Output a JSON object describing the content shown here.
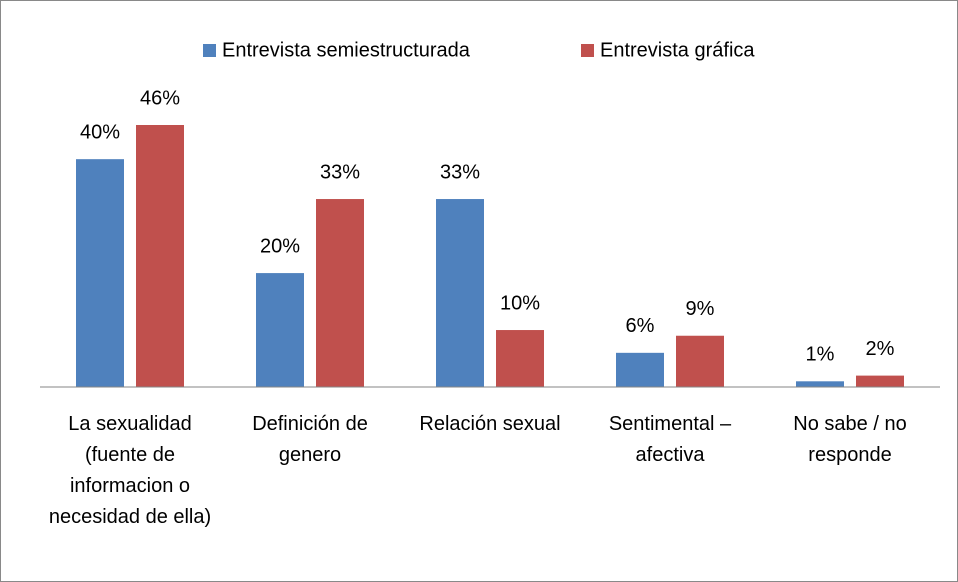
{
  "chart_data": {
    "type": "bar",
    "categories": [
      "La sexualidad (fuente de informacion o necesidad de ella)",
      "Definición de genero",
      "Relación sexual",
      "Sentimental – afectiva",
      "No sabe / no responde"
    ],
    "series": [
      {
        "name": "Entrevista semiestructurada",
        "color": "#4f81bd",
        "values": [
          40,
          20,
          33,
          6,
          1
        ],
        "value_labels": [
          "40%",
          "20%",
          "33%",
          "6%",
          "1%"
        ]
      },
      {
        "name": "Entrevista gráfica",
        "color": "#c0504d",
        "values": [
          46,
          33,
          10,
          9,
          2
        ],
        "value_labels": [
          "46%",
          "33%",
          "10%",
          "9%",
          "2%"
        ]
      }
    ],
    "legend": "top"
  }
}
